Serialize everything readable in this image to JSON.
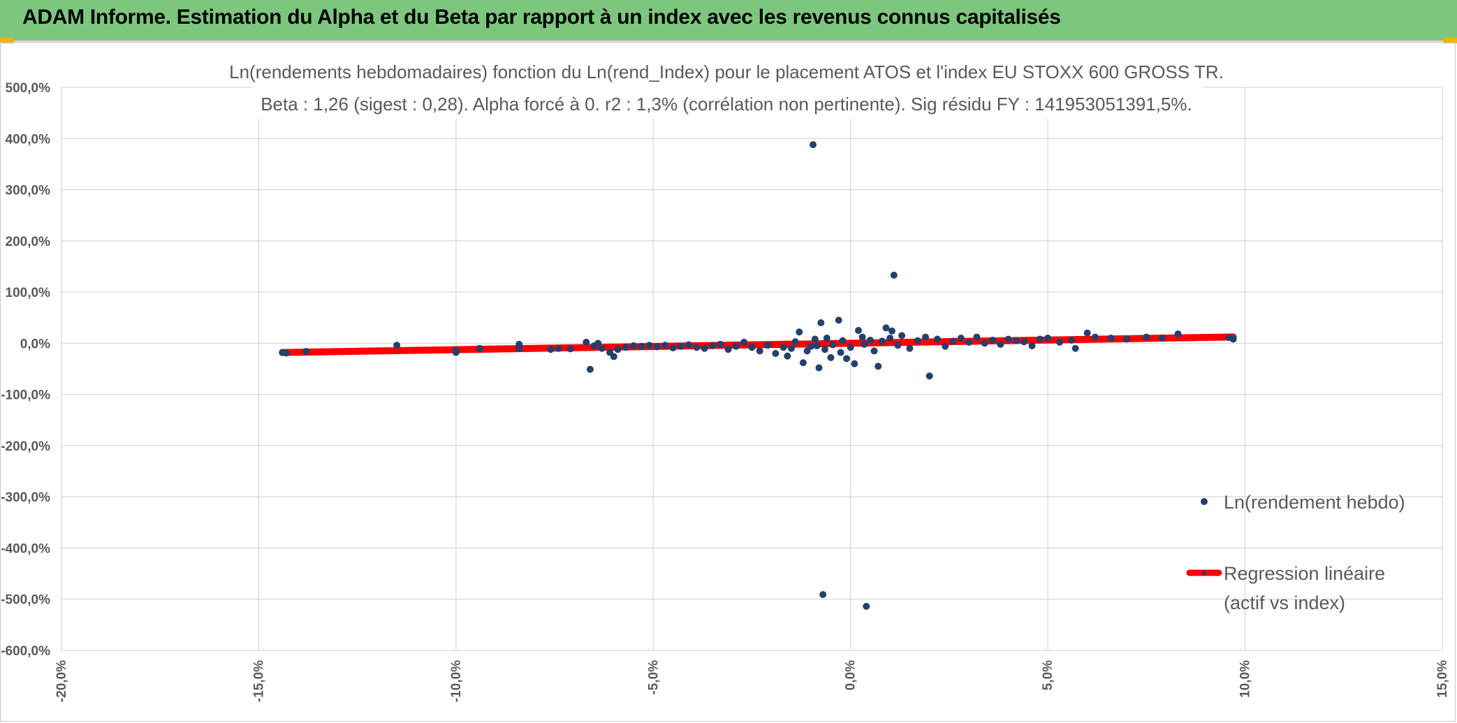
{
  "banner": {
    "title": "ADAM Informe. Estimation du Alpha et du Beta par rapport à un index avec les revenus connus capitalisés",
    "color": "#7dc67e",
    "accent": "#f2b300"
  },
  "chart_data": {
    "type": "scatter",
    "title": "Ln(rendements hebdomadaires) fonction du Ln(rend_Index) pour le placement ATOS et l'index EU STOXX 600 GROSS TR.",
    "subtitle": "Beta : 1,26 (sigest : 0,28). Alpha forcé à 0. r2 : 1,3% (corrélation non pertinente). Sig résidu FY : 141953051391,5%.",
    "xlabel": "",
    "ylabel": "",
    "xlim": [
      -20,
      15
    ],
    "ylim": [
      -600,
      500
    ],
    "x_ticks": [
      -20,
      -15,
      -10,
      -5,
      0,
      5,
      10,
      15
    ],
    "y_ticks": [
      500,
      400,
      300,
      200,
      100,
      0,
      -100,
      -200,
      -300,
      -400,
      -500,
      -600
    ],
    "x_tick_labels": [
      "-20,0%",
      "-15,0%",
      "-10,0%",
      "-5,0%",
      "0,0%",
      "5,0%",
      "10,0%",
      "15,0%"
    ],
    "y_tick_labels": [
      "500,0%",
      "400,0%",
      "300,0%",
      "200,0%",
      "100,0%",
      "0,0%",
      "-100,0%",
      "-200,0%",
      "-300,0%",
      "-400,0%",
      "-500,0%",
      "-600,0%"
    ],
    "grid": true,
    "legend_position": "right",
    "series": [
      {
        "name": "Ln(rendement hebdo)",
        "kind": "scatter",
        "color": "#24406e",
        "points": [
          [
            -14.4,
            -18
          ],
          [
            -14.3,
            -19
          ],
          [
            -13.8,
            -16
          ],
          [
            -11.5,
            -4
          ],
          [
            -10.0,
            -14
          ],
          [
            -10.0,
            -18
          ],
          [
            -9.4,
            -10
          ],
          [
            -8.4,
            -2
          ],
          [
            -8.4,
            -10
          ],
          [
            -7.6,
            -12
          ],
          [
            -7.4,
            -10
          ],
          [
            -7.1,
            -11
          ],
          [
            -6.7,
            2
          ],
          [
            -6.6,
            -51
          ],
          [
            -6.5,
            -5
          ],
          [
            -6.4,
            0
          ],
          [
            -6.3,
            -10
          ],
          [
            -6.1,
            -18
          ],
          [
            -6.0,
            -26
          ],
          [
            -5.9,
            -12
          ],
          [
            -5.7,
            -8
          ],
          [
            -5.5,
            -5
          ],
          [
            -5.3,
            -6
          ],
          [
            -5.1,
            -4
          ],
          [
            -4.9,
            -7
          ],
          [
            -4.7,
            -4
          ],
          [
            -4.5,
            -9
          ],
          [
            -4.3,
            -6
          ],
          [
            -4.1,
            -3
          ],
          [
            -3.9,
            -8
          ],
          [
            -3.7,
            -10
          ],
          [
            -3.5,
            -5
          ],
          [
            -3.3,
            -2
          ],
          [
            -3.1,
            -12
          ],
          [
            -2.9,
            -6
          ],
          [
            -2.7,
            2
          ],
          [
            -2.5,
            -8
          ],
          [
            -2.3,
            -15
          ],
          [
            -2.1,
            -4
          ],
          [
            -1.9,
            -20
          ],
          [
            -1.7,
            -8
          ],
          [
            -1.6,
            -25
          ],
          [
            -1.5,
            -10
          ],
          [
            -1.4,
            3
          ],
          [
            -1.3,
            22
          ],
          [
            -1.2,
            -38
          ],
          [
            -1.1,
            -15
          ],
          [
            -1.0,
            -6
          ],
          [
            -0.95,
            388
          ],
          [
            -0.9,
            8
          ],
          [
            -0.85,
            -5
          ],
          [
            -0.8,
            -48
          ],
          [
            -0.75,
            40
          ],
          [
            -0.7,
            -491
          ],
          [
            -0.65,
            -12
          ],
          [
            -0.6,
            10
          ],
          [
            -0.5,
            -28
          ],
          [
            -0.45,
            -3
          ],
          [
            -0.3,
            45
          ],
          [
            -0.25,
            -18
          ],
          [
            -0.2,
            5
          ],
          [
            -0.1,
            -30
          ],
          [
            0.0,
            -8
          ],
          [
            0.1,
            -40
          ],
          [
            0.2,
            25
          ],
          [
            0.3,
            12
          ],
          [
            0.35,
            -2
          ],
          [
            0.4,
            -514
          ],
          [
            0.5,
            6
          ],
          [
            0.6,
            -15
          ],
          [
            0.7,
            -45
          ],
          [
            0.8,
            4
          ],
          [
            0.9,
            30
          ],
          [
            1.0,
            10
          ],
          [
            1.05,
            24
          ],
          [
            1.1,
            133
          ],
          [
            1.2,
            -4
          ],
          [
            1.3,
            15
          ],
          [
            1.5,
            -10
          ],
          [
            1.7,
            5
          ],
          [
            1.9,
            12
          ],
          [
            2.0,
            -64
          ],
          [
            2.2,
            8
          ],
          [
            2.4,
            -6
          ],
          [
            2.6,
            4
          ],
          [
            2.8,
            10
          ],
          [
            3.0,
            2
          ],
          [
            3.2,
            12
          ],
          [
            3.4,
            0
          ],
          [
            3.6,
            6
          ],
          [
            3.8,
            -2
          ],
          [
            4.0,
            8
          ],
          [
            4.2,
            5
          ],
          [
            4.4,
            3
          ],
          [
            4.6,
            -5
          ],
          [
            4.8,
            8
          ],
          [
            5.0,
            10
          ],
          [
            5.3,
            2
          ],
          [
            5.6,
            6
          ],
          [
            5.7,
            -10
          ],
          [
            6.0,
            20
          ],
          [
            6.2,
            12
          ],
          [
            6.6,
            10
          ],
          [
            7.0,
            8
          ],
          [
            7.5,
            12
          ],
          [
            7.9,
            10
          ],
          [
            8.3,
            18
          ],
          [
            9.6,
            11
          ],
          [
            9.7,
            8
          ]
        ]
      },
      {
        "name": "Regression linéaire",
        "name2": "(actif vs index)",
        "kind": "line",
        "color": "#ff0000",
        "x_range": [
          -14.4,
          9.7
        ],
        "y_range": [
          -18.1,
          12.2
        ]
      }
    ]
  }
}
